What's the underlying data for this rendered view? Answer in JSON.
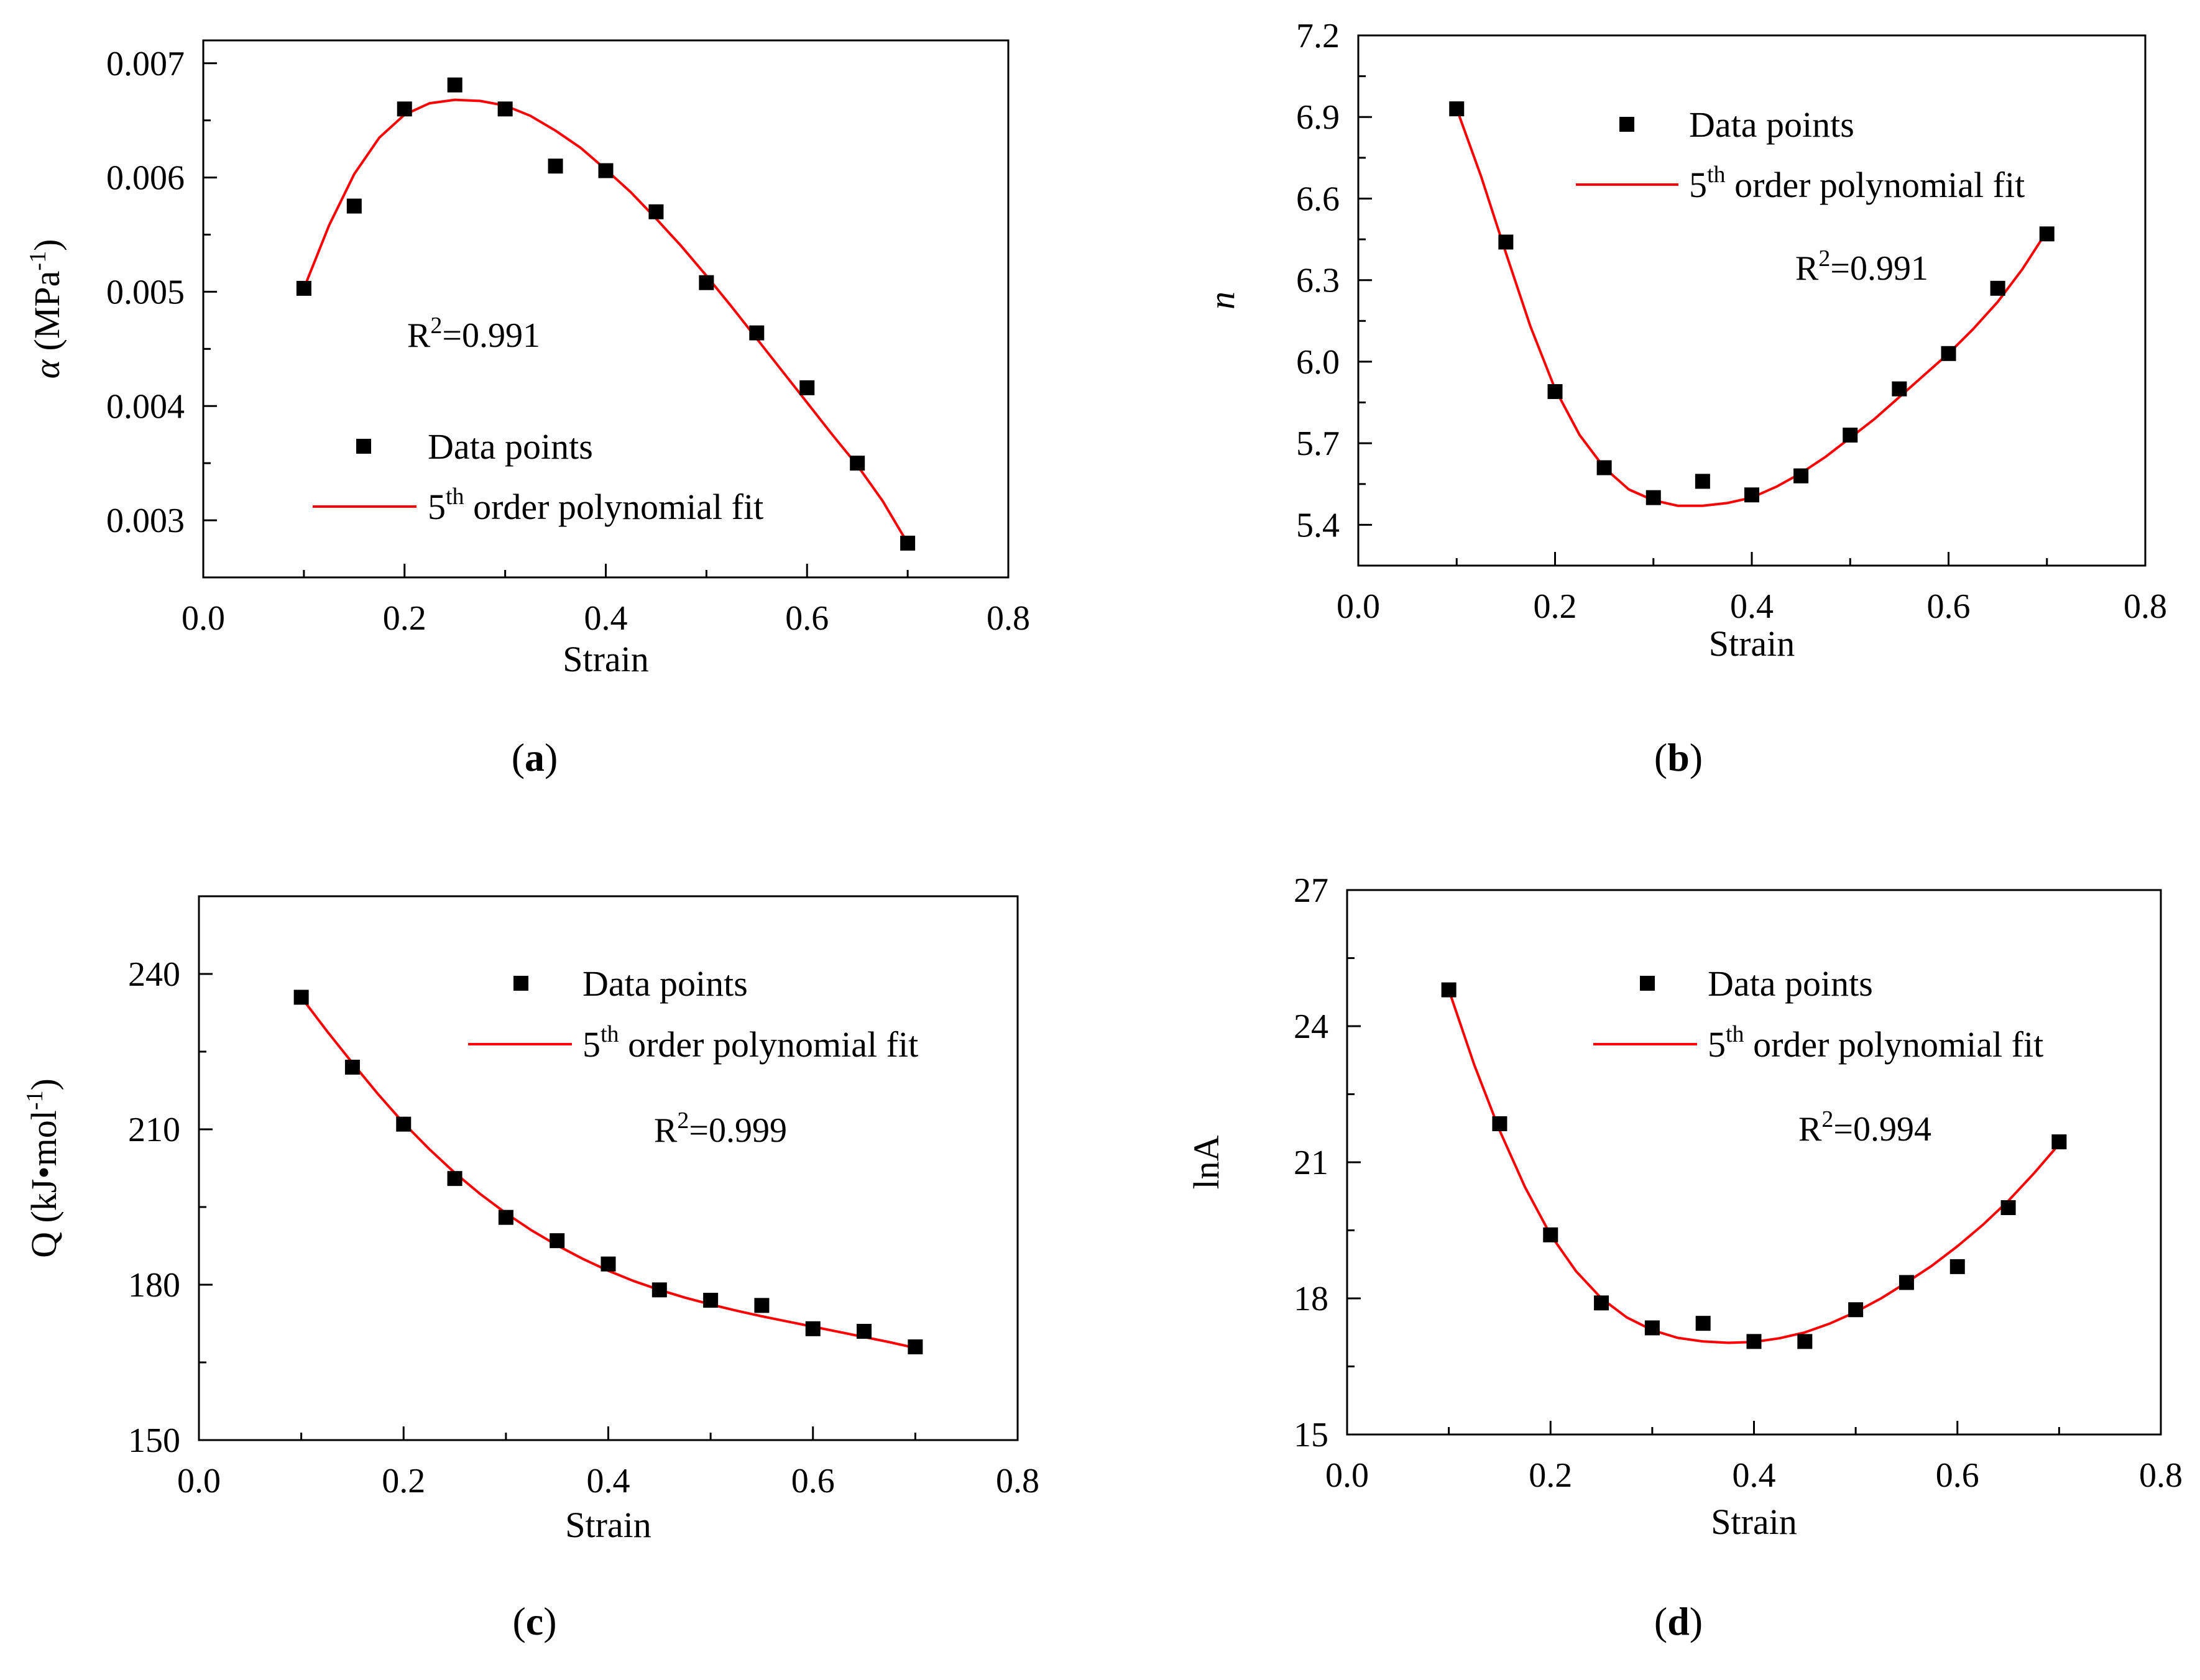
{
  "chart_data": [
    {
      "type": "scatter",
      "panel": "a",
      "caption": "a",
      "xlabel": "Strain",
      "ylabel": {
        "prefix": "α (MPa",
        "sup": "-1",
        "suffix": ")",
        "italic_symbol": true
      },
      "xlim": [
        0,
        0.8
      ],
      "ylim": [
        0.0025,
        0.0072
      ],
      "xticks": [
        0.0,
        0.2,
        0.4,
        0.6,
        0.8
      ],
      "xtick_labels": [
        "0.0",
        "0.2",
        "0.4",
        "0.6",
        "0.8"
      ],
      "yticks": [
        0.003,
        0.004,
        0.005,
        0.006,
        0.007
      ],
      "ytick_labels": [
        "0.003",
        "0.004",
        "0.005",
        "0.006",
        "0.007"
      ],
      "series": [
        {
          "name": "Data points",
          "marker": "square",
          "color": "#000000",
          "x": [
            0.1,
            0.15,
            0.2,
            0.25,
            0.3,
            0.35,
            0.4,
            0.45,
            0.5,
            0.55,
            0.6,
            0.65,
            0.7
          ],
          "y": [
            0.00503,
            0.00575,
            0.0066,
            0.00681,
            0.0066,
            0.0061,
            0.00606,
            0.0057,
            0.00508,
            0.00464,
            0.00416,
            0.0035,
            0.0028
          ]
        },
        {
          "name": "5th order polynomial fit",
          "type": "line",
          "color": "#ff0000",
          "x": [
            0.1,
            0.125,
            0.15,
            0.175,
            0.2,
            0.225,
            0.25,
            0.275,
            0.3,
            0.325,
            0.35,
            0.375,
            0.4,
            0.425,
            0.45,
            0.475,
            0.5,
            0.525,
            0.55,
            0.575,
            0.6,
            0.625,
            0.65,
            0.675,
            0.7
          ],
          "y": [
            0.00503,
            0.00558,
            0.00603,
            0.00635,
            0.00655,
            0.00665,
            0.00668,
            0.00667,
            0.00663,
            0.00654,
            0.00641,
            0.00626,
            0.00607,
            0.00587,
            0.00564,
            0.0054,
            0.00514,
            0.00487,
            0.00459,
            0.00431,
            0.00403,
            0.00375,
            0.00348,
            0.00317,
            0.0028
          ]
        }
      ],
      "legend": {
        "location": "lower-center",
        "scatter_label": "Data points",
        "line_label_base": "5",
        "line_label_sup": "th",
        "line_label_rest": " order polynomial fit"
      },
      "annotation": {
        "base": "R",
        "sup": "2",
        "rest": "=0.991"
      }
    },
    {
      "type": "scatter",
      "panel": "b",
      "caption": "b",
      "xlabel": "Strain",
      "ylabel": {
        "prefix": "n",
        "sup": "",
        "suffix": "",
        "italic_symbol": true
      },
      "xlim": [
        0,
        0.8
      ],
      "ylim": [
        5.25,
        7.2
      ],
      "xticks": [
        0.0,
        0.2,
        0.4,
        0.6,
        0.8
      ],
      "xtick_labels": [
        "0.0",
        "0.2",
        "0.4",
        "0.6",
        "0.8"
      ],
      "yticks": [
        5.4,
        5.7,
        6.0,
        6.3,
        6.6,
        6.9,
        7.2
      ],
      "ytick_labels": [
        "5.4",
        "5.7",
        "6.0",
        "6.3",
        "6.6",
        "6.9",
        "7.2"
      ],
      "series": [
        {
          "name": "Data points",
          "marker": "square",
          "color": "#000000",
          "x": [
            0.1,
            0.15,
            0.2,
            0.25,
            0.3,
            0.35,
            0.4,
            0.45,
            0.5,
            0.55,
            0.6,
            0.65,
            0.7
          ],
          "y": [
            6.93,
            6.44,
            5.89,
            5.61,
            5.5,
            5.56,
            5.51,
            5.58,
            5.73,
            5.9,
            6.03,
            6.27,
            6.47
          ]
        },
        {
          "name": "5th order polynomial fit",
          "type": "line",
          "color": "#ff0000",
          "x": [
            0.1,
            0.125,
            0.15,
            0.175,
            0.2,
            0.225,
            0.25,
            0.275,
            0.3,
            0.325,
            0.35,
            0.375,
            0.4,
            0.425,
            0.45,
            0.475,
            0.5,
            0.525,
            0.55,
            0.575,
            0.6,
            0.625,
            0.65,
            0.675,
            0.7
          ],
          "y": [
            6.93,
            6.68,
            6.4,
            6.13,
            5.9,
            5.73,
            5.61,
            5.53,
            5.49,
            5.47,
            5.47,
            5.48,
            5.5,
            5.54,
            5.59,
            5.65,
            5.72,
            5.79,
            5.87,
            5.95,
            6.03,
            6.12,
            6.22,
            6.34,
            6.48
          ]
        }
      ],
      "legend": {
        "location": "top-right",
        "scatter_label": "Data points",
        "line_label_base": "5",
        "line_label_sup": "th",
        "line_label_rest": " order polynomial fit"
      },
      "annotation": {
        "base": "R",
        "sup": "2",
        "rest": "=0.991"
      }
    },
    {
      "type": "scatter",
      "panel": "c",
      "caption": "c",
      "xlabel": "Strain",
      "ylabel": {
        "prefix": "Q (kJ•mol",
        "sup": "-1",
        "suffix": ")",
        "italic_symbol": false
      },
      "xlim": [
        0,
        0.8
      ],
      "ylim": [
        150,
        255
      ],
      "xticks": [
        0.0,
        0.2,
        0.4,
        0.6,
        0.8
      ],
      "xtick_labels": [
        "0.0",
        "0.2",
        "0.4",
        "0.6",
        "0.8"
      ],
      "yticks": [
        150,
        180,
        210,
        240
      ],
      "ytick_labels": [
        "150",
        "180",
        "210",
        "240"
      ],
      "series": [
        {
          "name": "Data points",
          "marker": "square",
          "color": "#000000",
          "x": [
            0.1,
            0.15,
            0.2,
            0.25,
            0.3,
            0.35,
            0.4,
            0.45,
            0.5,
            0.55,
            0.6,
            0.65,
            0.7
          ],
          "y": [
            235.5,
            222,
            211,
            200.5,
            193,
            188.5,
            184,
            179,
            177,
            176,
            171.5,
            171,
            168
          ]
        },
        {
          "name": "5th order polynomial fit",
          "type": "line",
          "color": "#ff0000",
          "x": [
            0.1,
            0.125,
            0.15,
            0.175,
            0.2,
            0.225,
            0.25,
            0.275,
            0.3,
            0.325,
            0.35,
            0.375,
            0.4,
            0.425,
            0.45,
            0.475,
            0.5,
            0.525,
            0.55,
            0.575,
            0.6,
            0.625,
            0.65,
            0.675,
            0.7
          ],
          "y": [
            235.5,
            229,
            222.8,
            216.8,
            211.2,
            206.2,
            201.6,
            197.5,
            193.8,
            190.5,
            187.6,
            185,
            182.7,
            180.7,
            179,
            177.5,
            176.2,
            175,
            173.9,
            172.9,
            171.9,
            170.9,
            169.9,
            168.9,
            167.8
          ]
        }
      ],
      "legend": {
        "location": "top-right",
        "scatter_label": "Data points",
        "line_label_base": "5",
        "line_label_sup": "th",
        "line_label_rest": " order polynomial fit"
      },
      "annotation": {
        "base": "R",
        "sup": "2",
        "rest": "=0.999"
      }
    },
    {
      "type": "scatter",
      "panel": "d",
      "caption": "d",
      "xlabel": "Strain",
      "ylabel": {
        "prefix": "lnA",
        "sup": "",
        "suffix": "",
        "italic_symbol": false
      },
      "xlim": [
        0,
        0.8
      ],
      "ylim": [
        15,
        27
      ],
      "xticks": [
        0.0,
        0.2,
        0.4,
        0.6,
        0.8
      ],
      "xtick_labels": [
        "0.0",
        "0.2",
        "0.4",
        "0.6",
        "0.8"
      ],
      "yticks": [
        15,
        18,
        21,
        24,
        27
      ],
      "ytick_labels": [
        "15",
        "18",
        "21",
        "24",
        "27"
      ],
      "series": [
        {
          "name": "Data points",
          "marker": "square",
          "color": "#000000",
          "x": [
            0.1,
            0.15,
            0.2,
            0.25,
            0.3,
            0.35,
            0.4,
            0.45,
            0.5,
            0.55,
            0.6,
            0.65,
            0.7
          ],
          "y": [
            24.8,
            21.85,
            19.4,
            17.9,
            17.35,
            17.45,
            17.05,
            17.05,
            17.75,
            18.35,
            18.7,
            20.0,
            21.45
          ]
        },
        {
          "name": "5th order polynomial fit",
          "type": "line",
          "color": "#ff0000",
          "x": [
            0.1,
            0.125,
            0.15,
            0.175,
            0.2,
            0.225,
            0.25,
            0.275,
            0.3,
            0.325,
            0.35,
            0.375,
            0.4,
            0.425,
            0.45,
            0.475,
            0.5,
            0.525,
            0.55,
            0.575,
            0.6,
            0.625,
            0.65,
            0.675,
            0.7
          ],
          "y": [
            24.8,
            23.15,
            21.7,
            20.45,
            19.4,
            18.6,
            18.0,
            17.58,
            17.3,
            17.13,
            17.05,
            17.02,
            17.04,
            17.12,
            17.25,
            17.45,
            17.7,
            18.0,
            18.35,
            18.72,
            19.15,
            19.62,
            20.15,
            20.75,
            21.4
          ]
        }
      ],
      "legend": {
        "location": "top-right",
        "scatter_label": "Data points",
        "line_label_base": "5",
        "line_label_sup": "th",
        "line_label_rest": " order polynomial fit"
      },
      "annotation": {
        "base": "R",
        "sup": "2",
        "rest": "=0.994"
      }
    }
  ]
}
